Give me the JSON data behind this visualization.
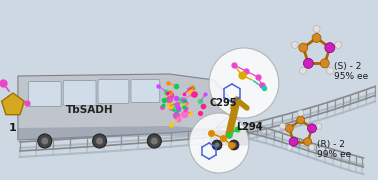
{
  "bg_color": "#cdd8e2",
  "train_label": "TbSADH",
  "substrate_label": "1",
  "product_s_label": "(S) - 2",
  "product_s_ee": "95% ee",
  "product_r_label": "(R) - 2",
  "product_r_ee": "99% ee",
  "mutation_l294": "L294",
  "mutation_c295": "C295",
  "track_color": "#999999",
  "train_body_color": "#b8bfc8",
  "train_window_color": "#d8e4ec",
  "substrate_ring_color": "#d4a020",
  "substrate_o_color": "#ee44cc",
  "product_orange": "#d48820",
  "product_magenta": "#cc22bb",
  "text_color": "#1a1a1a",
  "crane_color": "#b8860b",
  "crane_dark": "#8a6200"
}
